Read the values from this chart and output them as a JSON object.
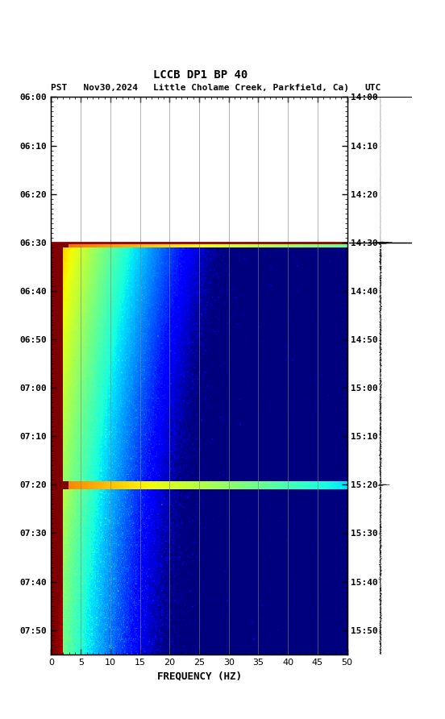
{
  "title1": "LCCB DP1 BP 40",
  "title2_left": "PST   Nov30,2024",
  "title2_center": "Little Cholame Creek, Parkfield, Ca)",
  "title2_right": "UTC",
  "xlabel": "FREQUENCY (HZ)",
  "freq_min": 0,
  "freq_max": 50,
  "freq_ticks": [
    0,
    5,
    10,
    15,
    20,
    25,
    30,
    35,
    40,
    45,
    50
  ],
  "time_ticks_pst": [
    "06:00",
    "06:10",
    "06:20",
    "06:30",
    "06:40",
    "06:50",
    "07:00",
    "07:10",
    "07:20",
    "07:30",
    "07:40",
    "07:50"
  ],
  "time_ticks_utc": [
    "14:00",
    "14:10",
    "14:20",
    "14:30",
    "14:40",
    "14:50",
    "15:00",
    "15:10",
    "15:20",
    "15:30",
    "15:40",
    "15:50"
  ],
  "total_minutes": 115,
  "event1_minute": 30,
  "event2_minute": 80,
  "blank_until_minute": 30,
  "background_color": "#ffffff",
  "usgs_green": "#2e7d32",
  "grid_color": "#808080",
  "event1_color": "#8B0000",
  "spectrogram_dark_blue": "#00008B"
}
